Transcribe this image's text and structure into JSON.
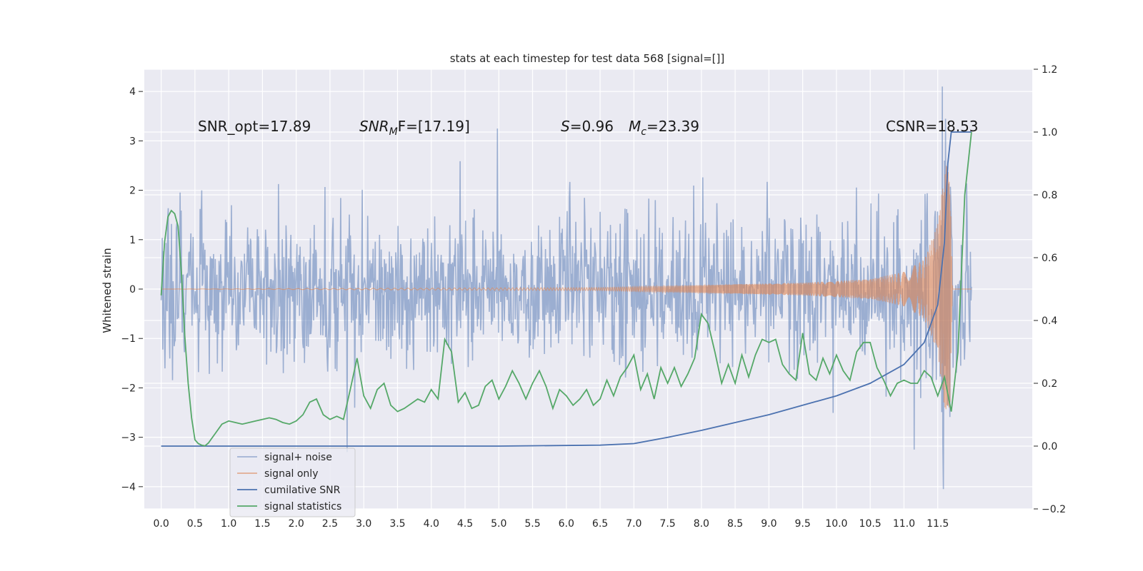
{
  "chart_data": {
    "type": "line",
    "title": "stats at each timestep for test data 568 [signal=[]]",
    "ylabel": "Whitened strain",
    "xlabel": "",
    "xlim": [
      -0.25,
      12.9
    ],
    "ylim": [
      -4.45,
      4.45
    ],
    "ylim_right": [
      -0.2,
      1.2
    ],
    "x_ticks": [
      "0.0",
      "0.5",
      "1.0",
      "1.5",
      "2.0",
      "2.5",
      "3.0",
      "3.5",
      "4.0",
      "4.5",
      "5.0",
      "5.5",
      "6.0",
      "6.5",
      "7.0",
      "7.5",
      "8.0",
      "8.5",
      "9.0",
      "9.5",
      "10.0",
      "10.5",
      "11.0",
      "11.5"
    ],
    "y_ticks": [
      4,
      3,
      2,
      1,
      0,
      -1,
      -2,
      -3,
      -4
    ],
    "y_ticks_labels": [
      "4",
      "3",
      "2",
      "1",
      "0",
      "−1",
      "−2",
      "−3",
      "−4"
    ],
    "y_ticks_right": [
      1.2,
      1.0,
      0.8,
      0.6,
      0.4,
      0.2,
      0.0,
      -0.2
    ],
    "y_ticks_right_labels": [
      "1.2",
      "1.0",
      "0.8",
      "0.6",
      "0.4",
      "0.2",
      "0.0",
      "−0.2"
    ],
    "grid": true,
    "legend_position": "bottom-left",
    "colors": {
      "noise": "#4c72b0",
      "signal": "#dd8452",
      "csnr": "#4c72b0",
      "stats": "#55a868",
      "background": "#eaeaf2"
    },
    "annotations": [
      {
        "text": "SNR_opt=17.89"
      },
      {
        "text": "SNR_MF=[17.19]",
        "main": "SNR",
        "sub": "M",
        "rest": "F=[17.19]"
      },
      {
        "text": "S=0.96",
        "main": "S",
        "rest": "=0.96"
      },
      {
        "text": "M_c=23.39",
        "main": "M",
        "sub": "c",
        "rest": "=23.39"
      },
      {
        "text": "CSNR=18.53"
      }
    ],
    "series": [
      {
        "name": "signal+ noise",
        "axis": "left",
        "x_range": [
          0.0,
          12.0
        ],
        "points": 1500,
        "envelope": [
          -1.6,
          1.6
        ],
        "peak_values": [
          [
            4.98,
            3.25
          ],
          [
            11.57,
            4.1
          ],
          [
            11.58,
            -4.05
          ],
          [
            11.15,
            -3.25
          ],
          [
            2.75,
            -3.3
          ],
          [
            0.1,
            1.4
          ],
          [
            0.6,
            2.0
          ]
        ]
      },
      {
        "name": "signal only",
        "axis": "left",
        "x_range": [
          0.0,
          12.0
        ],
        "chirp_amplitude": [
          [
            0.0,
            0.0
          ],
          [
            6.5,
            0.03
          ],
          [
            8.0,
            0.08
          ],
          [
            9.5,
            0.13
          ],
          [
            10.5,
            0.2
          ],
          [
            11.0,
            0.35
          ],
          [
            11.3,
            0.6
          ],
          [
            11.5,
            1.3
          ],
          [
            11.62,
            2.6
          ],
          [
            11.68,
            2.4
          ],
          [
            11.72,
            0.0
          ],
          [
            12.0,
            0.0
          ]
        ]
      },
      {
        "name": "cumilative SNR",
        "axis": "right",
        "x": [
          0.0,
          5.0,
          6.5,
          7.0,
          7.5,
          8.0,
          8.5,
          9.0,
          9.5,
          10.0,
          10.5,
          11.0,
          11.3,
          11.5,
          11.6,
          11.65,
          11.7,
          12.0
        ],
        "values": [
          0.0,
          0.0,
          0.003,
          0.008,
          0.028,
          0.05,
          0.075,
          0.1,
          0.13,
          0.16,
          0.2,
          0.26,
          0.33,
          0.45,
          0.65,
          0.9,
          1.0,
          1.0
        ]
      },
      {
        "name": "signal statistics",
        "axis": "right",
        "x": [
          0.0,
          0.05,
          0.1,
          0.15,
          0.2,
          0.25,
          0.3,
          0.35,
          0.4,
          0.45,
          0.5,
          0.55,
          0.6,
          0.65,
          0.7,
          0.75,
          0.8,
          0.9,
          1.0,
          1.1,
          1.2,
          1.3,
          1.4,
          1.5,
          1.6,
          1.7,
          1.8,
          1.9,
          2.0,
          2.1,
          2.2,
          2.3,
          2.4,
          2.5,
          2.6,
          2.7,
          2.8,
          2.9,
          3.0,
          3.1,
          3.2,
          3.3,
          3.4,
          3.5,
          3.6,
          3.7,
          3.8,
          3.9,
          4.0,
          4.1,
          4.2,
          4.3,
          4.4,
          4.5,
          4.6,
          4.7,
          4.8,
          4.9,
          5.0,
          5.1,
          5.2,
          5.3,
          5.4,
          5.5,
          5.6,
          5.7,
          5.8,
          5.9,
          6.0,
          6.1,
          6.2,
          6.3,
          6.4,
          6.5,
          6.6,
          6.7,
          6.8,
          6.9,
          7.0,
          7.1,
          7.2,
          7.3,
          7.4,
          7.5,
          7.6,
          7.7,
          7.8,
          7.9,
          8.0,
          8.1,
          8.2,
          8.3,
          8.4,
          8.5,
          8.6,
          8.7,
          8.8,
          8.9,
          9.0,
          9.1,
          9.2,
          9.3,
          9.4,
          9.5,
          9.6,
          9.7,
          9.8,
          9.9,
          10.0,
          10.1,
          10.2,
          10.3,
          10.4,
          10.5,
          10.6,
          10.7,
          10.8,
          10.9,
          11.0,
          11.1,
          11.2,
          11.3,
          11.4,
          11.5,
          11.6,
          11.7,
          11.8,
          11.9,
          12.0
        ],
        "values": [
          0.48,
          0.65,
          0.73,
          0.75,
          0.74,
          0.7,
          0.55,
          0.35,
          0.2,
          0.09,
          0.02,
          0.008,
          0.003,
          0.001,
          0.01,
          0.025,
          0.04,
          0.07,
          0.08,
          0.075,
          0.07,
          0.075,
          0.08,
          0.085,
          0.09,
          0.085,
          0.075,
          0.07,
          0.08,
          0.1,
          0.14,
          0.15,
          0.1,
          0.085,
          0.095,
          0.085,
          0.18,
          0.28,
          0.16,
          0.12,
          0.18,
          0.2,
          0.13,
          0.11,
          0.12,
          0.135,
          0.15,
          0.14,
          0.18,
          0.15,
          0.34,
          0.3,
          0.14,
          0.17,
          0.12,
          0.13,
          0.19,
          0.21,
          0.15,
          0.19,
          0.24,
          0.2,
          0.15,
          0.2,
          0.24,
          0.19,
          0.12,
          0.18,
          0.16,
          0.13,
          0.15,
          0.18,
          0.13,
          0.15,
          0.21,
          0.16,
          0.22,
          0.25,
          0.29,
          0.18,
          0.23,
          0.15,
          0.25,
          0.2,
          0.25,
          0.19,
          0.23,
          0.28,
          0.42,
          0.39,
          0.3,
          0.2,
          0.26,
          0.2,
          0.29,
          0.22,
          0.29,
          0.34,
          0.33,
          0.34,
          0.26,
          0.23,
          0.21,
          0.36,
          0.23,
          0.21,
          0.28,
          0.23,
          0.29,
          0.24,
          0.21,
          0.3,
          0.33,
          0.33,
          0.25,
          0.21,
          0.16,
          0.2,
          0.21,
          0.2,
          0.2,
          0.24,
          0.22,
          0.16,
          0.22,
          0.11,
          0.3,
          0.8,
          1.0
        ]
      }
    ]
  }
}
